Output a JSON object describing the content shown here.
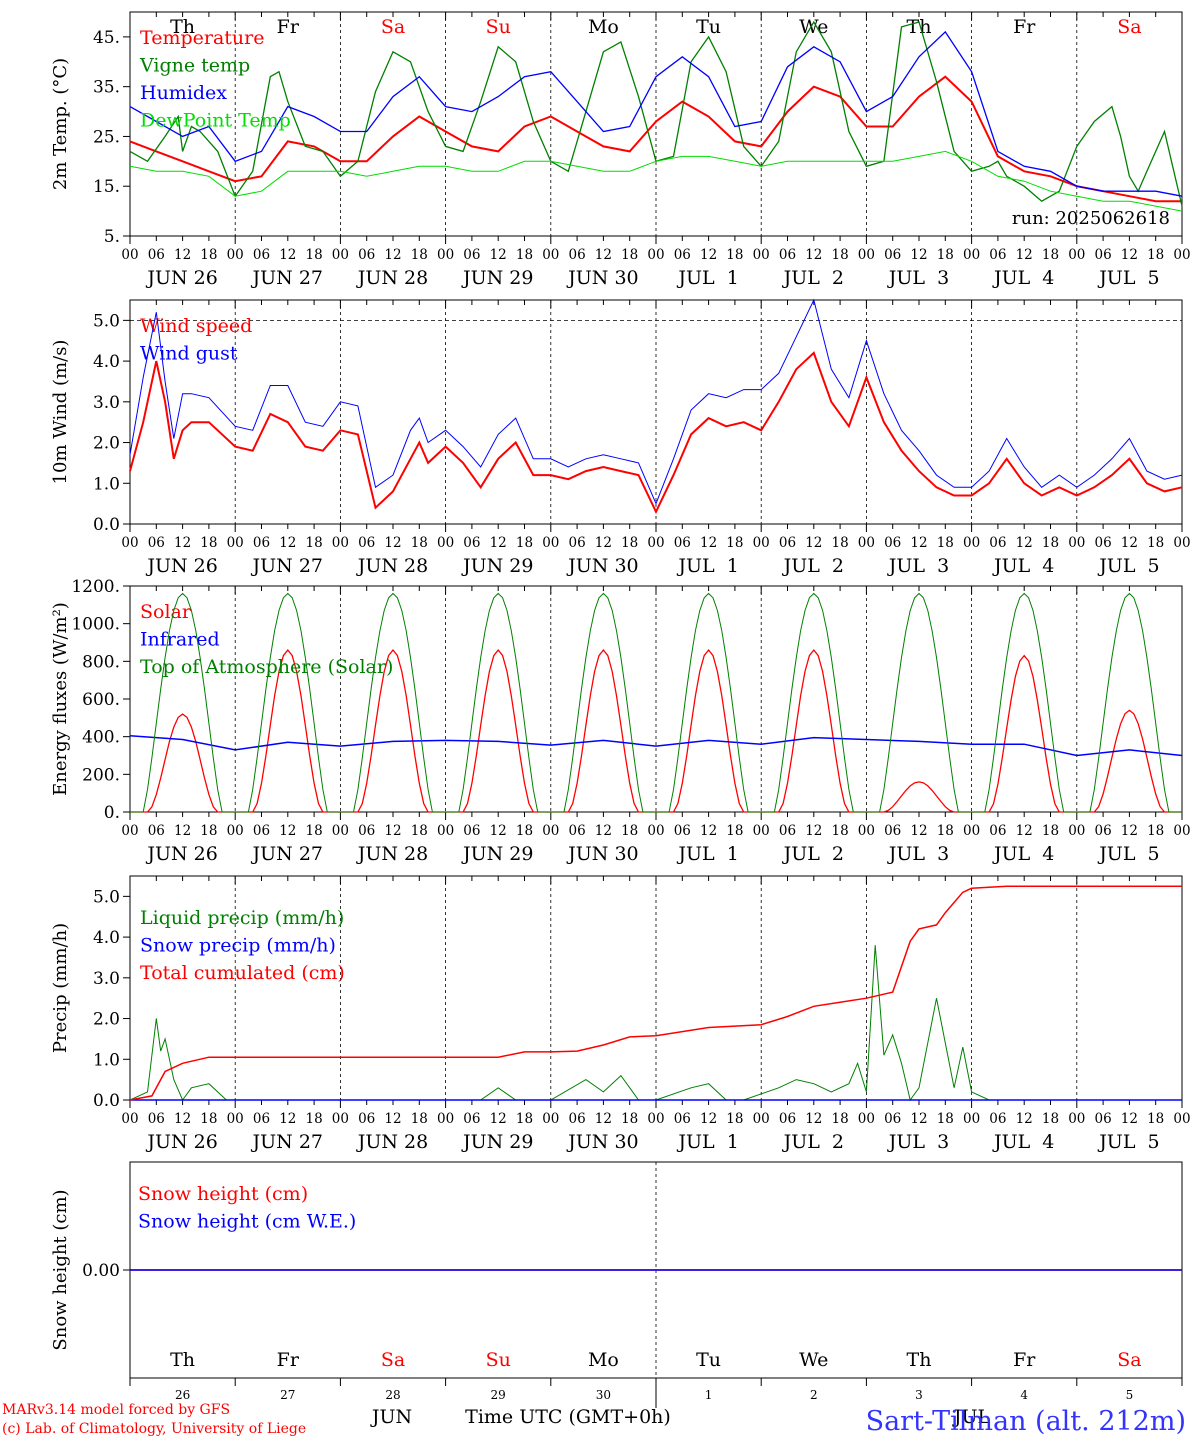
{
  "footer": {
    "model_line": "MARv3.14 model forced by GFS",
    "lab_line": "(c) Lab. of Climatology, University of Liege",
    "station": "Sart-Tilman (alt. 212m)",
    "month_jun": "JUN",
    "month_jul": "JUL",
    "time_label": "Time UTC (GMT+0h)"
  },
  "colors": {
    "red": "#ff0000",
    "blue": "#0000ff",
    "green": "#008000",
    "light_green": "#00dd00",
    "black": "#000000"
  },
  "days": {
    "weekday_labels": [
      "Th",
      "Fr",
      "Sa",
      "Su",
      "Mo",
      "Tu",
      "We",
      "Th",
      "Fr",
      "Sa"
    ],
    "weekend_flags": [
      false,
      false,
      true,
      true,
      false,
      false,
      false,
      false,
      false,
      true
    ],
    "date_labels": [
      "JUN 26",
      "JUN 27",
      "JUN 28",
      "JUN 29",
      "JUN 30",
      "JUL  1",
      "JUL  2",
      "JUL  3",
      "JUL  4",
      "JUL  5"
    ],
    "day_numbers": [
      "26",
      "27",
      "28",
      "29",
      "30",
      "1",
      "2",
      "3",
      "4",
      "5"
    ],
    "hour_ticks": [
      "00",
      "06",
      "12",
      "18"
    ]
  },
  "chart_data": [
    {
      "type": "line",
      "title": "",
      "ylabel": "2m Temp. (°C)",
      "ylim": [
        5,
        50
      ],
      "y_ticks": [
        "5.",
        "15.",
        "25.",
        "35.",
        "45."
      ],
      "run_label": "run: 2025062618",
      "x_unit": "hours since Jun 26 00 UTC",
      "series": [
        {
          "name": "Temperature",
          "color": "#ff0000",
          "stroke": 2,
          "x": [
            0,
            6,
            12,
            18,
            24,
            30,
            36,
            42,
            48,
            54,
            60,
            66,
            72,
            78,
            84,
            90,
            96,
            102,
            108,
            114,
            120,
            126,
            132,
            138,
            144,
            150,
            156,
            162,
            168,
            174,
            180,
            186,
            192,
            198,
            204,
            210,
            216,
            222,
            228,
            234,
            240
          ],
          "y": [
            24,
            22,
            20,
            18,
            16,
            17,
            24,
            23,
            20,
            20,
            25,
            29,
            26,
            23,
            22,
            27,
            29,
            26,
            23,
            22,
            28,
            32,
            29,
            24,
            23,
            30,
            35,
            33,
            27,
            27,
            33,
            37,
            32,
            21,
            18,
            17,
            15,
            14,
            13,
            12,
            12
          ]
        },
        {
          "name": "Vigne temp",
          "color": "#008000",
          "stroke": 1.3,
          "x": [
            0,
            4,
            8,
            11,
            12,
            14,
            16,
            20,
            24,
            28,
            32,
            34,
            36,
            40,
            44,
            48,
            52,
            56,
            60,
            64,
            68,
            72,
            76,
            80,
            84,
            88,
            92,
            96,
            100,
            104,
            108,
            112,
            116,
            120,
            124,
            128,
            132,
            136,
            140,
            144,
            148,
            152,
            156,
            160,
            164,
            168,
            172,
            176,
            180,
            184,
            188,
            192,
            196,
            198,
            200,
            204,
            208,
            212,
            216,
            220,
            224,
            226,
            228,
            230,
            232,
            236,
            240
          ],
          "y": [
            22,
            20,
            25,
            29,
            22,
            27,
            26,
            22,
            13,
            18,
            37,
            38,
            32,
            23,
            22,
            17,
            20,
            34,
            42,
            40,
            30,
            23,
            22,
            32,
            43,
            40,
            28,
            20,
            18,
            30,
            42,
            44,
            33,
            20,
            21,
            40,
            45,
            38,
            23,
            19,
            24,
            42,
            48,
            42,
            26,
            19,
            20,
            47,
            48,
            36,
            22,
            18,
            19,
            20,
            17,
            15,
            12,
            14,
            23,
            28,
            31,
            25,
            17,
            14,
            18,
            26,
            11
          ]
        },
        {
          "name": "Humidex",
          "color": "#0000ff",
          "stroke": 1.3,
          "x": [
            0,
            6,
            12,
            18,
            24,
            30,
            36,
            42,
            48,
            54,
            60,
            66,
            72,
            78,
            84,
            90,
            96,
            102,
            108,
            114,
            120,
            126,
            132,
            138,
            144,
            150,
            156,
            162,
            168,
            174,
            180,
            186,
            192,
            198,
            204,
            210,
            216,
            222,
            228,
            234,
            240
          ],
          "y": [
            31,
            28,
            25,
            27,
            20,
            22,
            31,
            29,
            26,
            26,
            33,
            37,
            31,
            30,
            33,
            37,
            38,
            32,
            26,
            27,
            37,
            41,
            37,
            27,
            28,
            39,
            43,
            40,
            30,
            33,
            41,
            46,
            38,
            22,
            19,
            18,
            15,
            14,
            14,
            14,
            13
          ]
        },
        {
          "name": "DewPoint Temp",
          "color": "#00dd00",
          "stroke": 1,
          "x": [
            0,
            6,
            12,
            18,
            24,
            30,
            36,
            42,
            48,
            54,
            60,
            66,
            72,
            78,
            84,
            90,
            96,
            102,
            108,
            114,
            120,
            126,
            132,
            138,
            144,
            150,
            156,
            162,
            168,
            174,
            180,
            186,
            192,
            198,
            204,
            210,
            216,
            222,
            228,
            234,
            240
          ],
          "y": [
            19,
            18,
            18,
            17,
            13,
            14,
            18,
            18,
            18,
            17,
            18,
            19,
            19,
            18,
            18,
            20,
            20,
            19,
            18,
            18,
            20,
            21,
            21,
            20,
            19,
            20,
            20,
            20,
            20,
            20,
            21,
            22,
            20,
            17,
            16,
            14,
            13,
            12,
            12,
            11,
            10
          ]
        }
      ]
    },
    {
      "type": "line",
      "title": "",
      "ylabel": "10m Wind (m/s)",
      "ylim": [
        0,
        5.5
      ],
      "y_ticks": [
        "0.0",
        "1.0",
        "2.0",
        "3.0",
        "4.0",
        "5.0"
      ],
      "dashed_ref": 5.0,
      "series": [
        {
          "name": "Wind speed",
          "color": "#ff0000",
          "stroke": 2,
          "x": [
            0,
            3,
            6,
            8,
            10,
            12,
            14,
            18,
            24,
            28,
            32,
            36,
            40,
            44,
            48,
            52,
            56,
            60,
            64,
            66,
            68,
            72,
            76,
            80,
            84,
            88,
            92,
            96,
            100,
            104,
            108,
            112,
            116,
            120,
            124,
            128,
            132,
            136,
            140,
            144,
            148,
            152,
            156,
            160,
            164,
            168,
            172,
            176,
            180,
            184,
            188,
            192,
            196,
            200,
            204,
            208,
            212,
            216,
            220,
            224,
            228,
            232,
            236,
            240
          ],
          "y": [
            1.3,
            2.5,
            4.0,
            3.0,
            1.6,
            2.3,
            2.5,
            2.5,
            1.9,
            1.8,
            2.7,
            2.5,
            1.9,
            1.8,
            2.3,
            2.2,
            0.4,
            0.8,
            1.6,
            2.0,
            1.5,
            1.9,
            1.5,
            0.9,
            1.6,
            2.0,
            1.2,
            1.2,
            1.1,
            1.3,
            1.4,
            1.3,
            1.2,
            0.3,
            1.2,
            2.2,
            2.6,
            2.4,
            2.5,
            2.3,
            3.0,
            3.8,
            4.2,
            3.0,
            2.4,
            3.6,
            2.5,
            1.8,
            1.3,
            0.9,
            0.7,
            0.7,
            1.0,
            1.6,
            1.0,
            0.7,
            0.9,
            0.7,
            0.9,
            1.2,
            1.6,
            1.0,
            0.8,
            0.9
          ]
        },
        {
          "name": "Wind gust",
          "color": "#0000ff",
          "stroke": 1,
          "x": [
            0,
            3,
            6,
            8,
            10,
            12,
            14,
            18,
            24,
            28,
            32,
            36,
            40,
            44,
            48,
            52,
            56,
            60,
            64,
            66,
            68,
            72,
            76,
            80,
            84,
            88,
            92,
            96,
            100,
            104,
            108,
            112,
            116,
            120,
            124,
            128,
            132,
            136,
            140,
            144,
            148,
            152,
            156,
            160,
            164,
            168,
            172,
            176,
            180,
            184,
            188,
            192,
            196,
            200,
            204,
            208,
            212,
            216,
            220,
            224,
            228,
            232,
            236,
            240
          ],
          "y": [
            1.7,
            3.6,
            5.2,
            3.5,
            2.1,
            3.2,
            3.2,
            3.1,
            2.4,
            2.3,
            3.4,
            3.4,
            2.5,
            2.4,
            3.0,
            2.9,
            0.9,
            1.2,
            2.3,
            2.6,
            2.0,
            2.3,
            1.9,
            1.4,
            2.2,
            2.6,
            1.6,
            1.6,
            1.4,
            1.6,
            1.7,
            1.6,
            1.5,
            0.5,
            1.6,
            2.8,
            3.2,
            3.1,
            3.3,
            3.3,
            3.7,
            4.6,
            5.5,
            3.8,
            3.1,
            4.5,
            3.2,
            2.3,
            1.8,
            1.2,
            0.9,
            0.9,
            1.3,
            2.1,
            1.4,
            0.9,
            1.2,
            0.9,
            1.2,
            1.6,
            2.1,
            1.3,
            1.1,
            1.2
          ]
        }
      ]
    },
    {
      "type": "line",
      "title": "",
      "ylabel": "Energy fluxes (W/m²)",
      "ylim": [
        0,
        1200
      ],
      "y_ticks": [
        "0.",
        "200.",
        "400.",
        "600.",
        "800.",
        "1000.",
        "1200."
      ],
      "series": [
        {
          "name": "Solar",
          "color": "#ff0000",
          "stroke": 1.3,
          "note": "daily peak values",
          "peaks": [
            520,
            860,
            860,
            860,
            860,
            860,
            860,
            160,
            830,
            540
          ]
        },
        {
          "name": "Infrared",
          "color": "#0000ff",
          "stroke": 1.5,
          "x": [
            0,
            12,
            24,
            36,
            48,
            60,
            72,
            84,
            96,
            108,
            120,
            132,
            144,
            156,
            168,
            180,
            192,
            204,
            216,
            228,
            240
          ],
          "y": [
            405,
            385,
            330,
            370,
            350,
            375,
            380,
            375,
            355,
            380,
            350,
            380,
            360,
            395,
            385,
            375,
            360,
            360,
            300,
            330,
            300
          ]
        },
        {
          "name": "Top of Atmosphere (Solar)",
          "color": "#008000",
          "stroke": 1,
          "note": "daily peak value",
          "peaks": [
            1160,
            1160,
            1160,
            1160,
            1160,
            1160,
            1160,
            1160,
            1160,
            1160
          ]
        }
      ]
    },
    {
      "type": "line",
      "title": "",
      "ylabel": "Precip (mm/h)",
      "ylim": [
        0,
        5.5
      ],
      "y_ticks": [
        "0.0",
        "1.0",
        "2.0",
        "3.0",
        "4.0",
        "5.0"
      ],
      "series": [
        {
          "name": "Liquid precip (mm/h)",
          "color": "#008000",
          "stroke": 1,
          "x": [
            0,
            4,
            6,
            7,
            8,
            10,
            12,
            14,
            18,
            22,
            24,
            80,
            84,
            88,
            92,
            96,
            104,
            108,
            112,
            116,
            120,
            128,
            132,
            136,
            140,
            148,
            152,
            156,
            160,
            164,
            166,
            168,
            170,
            172,
            174,
            176,
            178,
            180,
            184,
            186,
            188,
            190,
            192,
            196,
            200,
            240
          ],
          "y": [
            0,
            0.2,
            2.0,
            1.2,
            1.5,
            0.5,
            0,
            0.3,
            0.4,
            0,
            0,
            0,
            0.3,
            0,
            0,
            0,
            0.5,
            0.2,
            0.6,
            0,
            0,
            0.3,
            0.4,
            0,
            0,
            0.3,
            0.5,
            0.4,
            0.2,
            0.4,
            0.9,
            0.2,
            3.8,
            1.1,
            1.6,
            0.9,
            0,
            0.3,
            2.5,
            1.4,
            0.3,
            1.3,
            0.2,
            0,
            0,
            0
          ]
        },
        {
          "name": "Snow precip (mm/h)",
          "color": "#0000ff",
          "stroke": 1.5,
          "x": [
            0,
            240
          ],
          "y": [
            0,
            0
          ]
        },
        {
          "name": "Total cumulated (cm)",
          "color": "#ff0000",
          "stroke": 1.5,
          "x": [
            0,
            5,
            8,
            12,
            18,
            24,
            84,
            90,
            96,
            102,
            108,
            114,
            120,
            132,
            144,
            150,
            156,
            162,
            168,
            174,
            178,
            180,
            184,
            186,
            190,
            192,
            200,
            240
          ],
          "y": [
            0,
            0.1,
            0.7,
            0.9,
            1.05,
            1.05,
            1.05,
            1.18,
            1.18,
            1.2,
            1.35,
            1.55,
            1.58,
            1.78,
            1.85,
            2.05,
            2.3,
            2.4,
            2.5,
            2.65,
            3.9,
            4.2,
            4.3,
            4.6,
            5.1,
            5.2,
            5.25,
            5.25
          ]
        }
      ]
    },
    {
      "type": "line",
      "title": "",
      "ylabel": "Snow height (cm)",
      "ylim": [
        -1,
        1
      ],
      "y_ticks": [
        "0.00"
      ],
      "series": [
        {
          "name": "Snow height (cm)",
          "color": "#ff0000",
          "stroke": 1.5,
          "x": [
            0,
            240
          ],
          "y": [
            0,
            0
          ]
        },
        {
          "name": "Snow height (cm W.E.)",
          "color": "#0000ff",
          "stroke": 1.5,
          "x": [
            0,
            240
          ],
          "y": [
            0,
            0
          ]
        }
      ]
    }
  ]
}
